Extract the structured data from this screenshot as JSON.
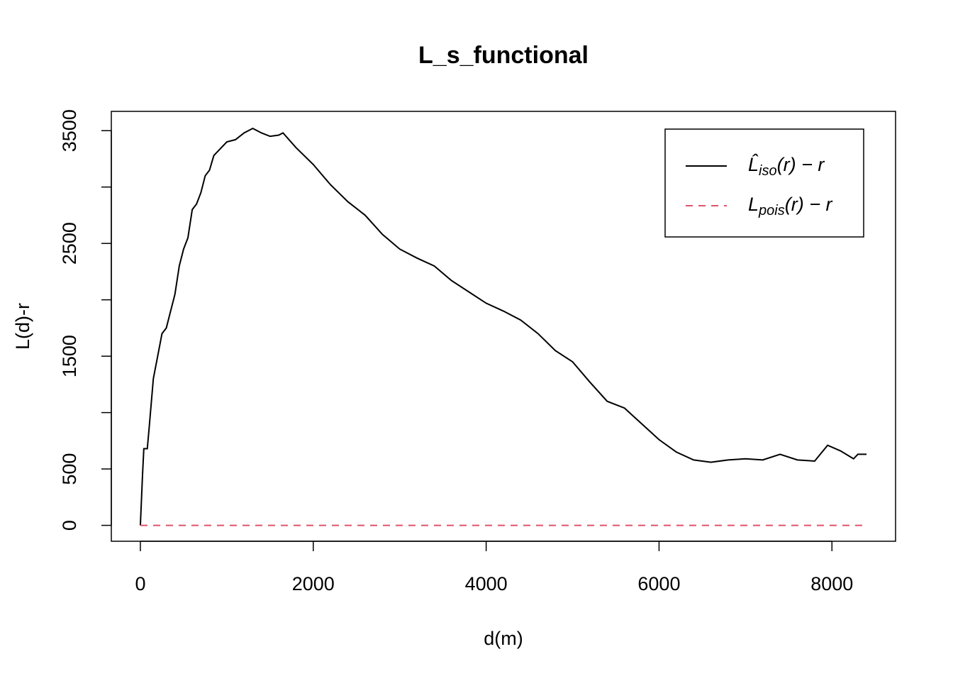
{
  "chart_data": {
    "type": "line",
    "title": "L_s_functional",
    "xlabel": "d(m)",
    "ylabel": "L(d)-r",
    "x": [
      0,
      25,
      40,
      80,
      100,
      150,
      200,
      250,
      300,
      350,
      400,
      450,
      500,
      550,
      600,
      650,
      700,
      750,
      800,
      850,
      900,
      1000,
      1100,
      1200,
      1300,
      1400,
      1500,
      1600,
      1650,
      1800,
      2000,
      2200,
      2400,
      2600,
      2800,
      3000,
      3200,
      3400,
      3600,
      3800,
      4000,
      4200,
      4400,
      4600,
      4800,
      5000,
      5200,
      5400,
      5600,
      5800,
      6000,
      6200,
      6400,
      6600,
      6800,
      7000,
      7200,
      7400,
      7600,
      7800,
      7950,
      8100,
      8250,
      8300,
      8400
    ],
    "series": [
      {
        "name": "L̂iso(r) − r",
        "color": "#000000",
        "dash": "solid",
        "values": [
          0,
          450,
          680,
          680,
          850,
          1300,
          1500,
          1700,
          1750,
          1900,
          2050,
          2300,
          2450,
          2550,
          2800,
          2850,
          2950,
          3100,
          3150,
          3280,
          3320,
          3400,
          3420,
          3480,
          3520,
          3480,
          3450,
          3460,
          3480,
          3350,
          3200,
          3020,
          2870,
          2750,
          2580,
          2450,
          2370,
          2300,
          2170,
          2070,
          1970,
          1900,
          1820,
          1700,
          1550,
          1450,
          1270,
          1100,
          1040,
          900,
          760,
          650,
          580,
          560,
          580,
          590,
          580,
          630,
          580,
          570,
          710,
          660,
          590,
          630,
          630
        ]
      },
      {
        "name": "Lpois(r) − r",
        "color": "#df536b",
        "dash": "dashed",
        "values": [
          0,
          0,
          0,
          0,
          0,
          0,
          0,
          0,
          0,
          0,
          0,
          0,
          0,
          0,
          0,
          0,
          0,
          0,
          0,
          0,
          0,
          0,
          0,
          0,
          0,
          0,
          0,
          0,
          0,
          0,
          0,
          0,
          0,
          0,
          0,
          0,
          0,
          0,
          0,
          0,
          0,
          0,
          0,
          0,
          0,
          0,
          0,
          0,
          0,
          0,
          0,
          0,
          0,
          0,
          0,
          0,
          0,
          0,
          0,
          0,
          0,
          0,
          0,
          0,
          0
        ]
      }
    ],
    "xlim": [
      -336,
      8736
    ],
    "ylim": [
      -141,
      3671
    ],
    "xticks": [
      0,
      2000,
      4000,
      6000,
      8000
    ],
    "yticks": [
      0,
      500,
      1500,
      2500,
      3500
    ],
    "yminor_ticks": [
      1000,
      2000,
      3000
    ],
    "legend": "top-right"
  }
}
